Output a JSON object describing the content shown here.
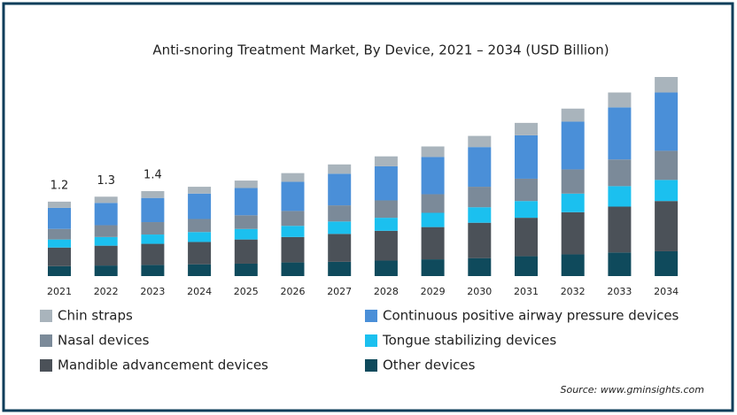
{
  "chart_data": {
    "type": "stacked_bar",
    "title": "Anti-snoring Treatment Market, By Device, 2021 – 2034 (USD Billion)",
    "categories": [
      "2021",
      "2022",
      "2023",
      "2024",
      "2025",
      "2026",
      "2027",
      "2028",
      "2029",
      "2030",
      "2031",
      "2032",
      "2033",
      "2034"
    ],
    "series": [
      {
        "name": "Other devices",
        "color": "#0f4a5c",
        "values": [
          0.16,
          0.17,
          0.18,
          0.19,
          0.2,
          0.22,
          0.23,
          0.25,
          0.27,
          0.29,
          0.32,
          0.35,
          0.38,
          0.4
        ]
      },
      {
        "name": "Mandible advancement devices",
        "color": "#4b5158",
        "values": [
          0.3,
          0.32,
          0.34,
          0.36,
          0.39,
          0.41,
          0.45,
          0.48,
          0.52,
          0.57,
          0.62,
          0.68,
          0.74,
          0.81
        ]
      },
      {
        "name": "Tongue stabilizing devices",
        "color": "#1bc0ef",
        "values": [
          0.13,
          0.14,
          0.15,
          0.16,
          0.17,
          0.18,
          0.2,
          0.21,
          0.23,
          0.25,
          0.27,
          0.3,
          0.33,
          0.34
        ]
      },
      {
        "name": "Nasal devices",
        "color": "#7b8a99",
        "values": [
          0.17,
          0.19,
          0.2,
          0.21,
          0.22,
          0.24,
          0.26,
          0.28,
          0.3,
          0.33,
          0.36,
          0.39,
          0.43,
          0.47
        ]
      },
      {
        "name": "Continuous positive airway pressure devices",
        "color": "#4a8fd8",
        "values": [
          0.34,
          0.36,
          0.39,
          0.41,
          0.44,
          0.47,
          0.51,
          0.55,
          0.6,
          0.64,
          0.7,
          0.77,
          0.84,
          0.94
        ]
      },
      {
        "name": "Chin straps",
        "color": "#a9b4bc",
        "values": [
          0.1,
          0.1,
          0.11,
          0.11,
          0.12,
          0.14,
          0.15,
          0.16,
          0.17,
          0.18,
          0.2,
          0.21,
          0.24,
          0.25
        ]
      }
    ],
    "annotations": [
      {
        "x": "2021",
        "value": 1.2
      },
      {
        "x": "2022",
        "value": 1.3
      },
      {
        "x": "2023",
        "value": 1.4
      }
    ],
    "source": "Source: www.gminsights.com"
  }
}
